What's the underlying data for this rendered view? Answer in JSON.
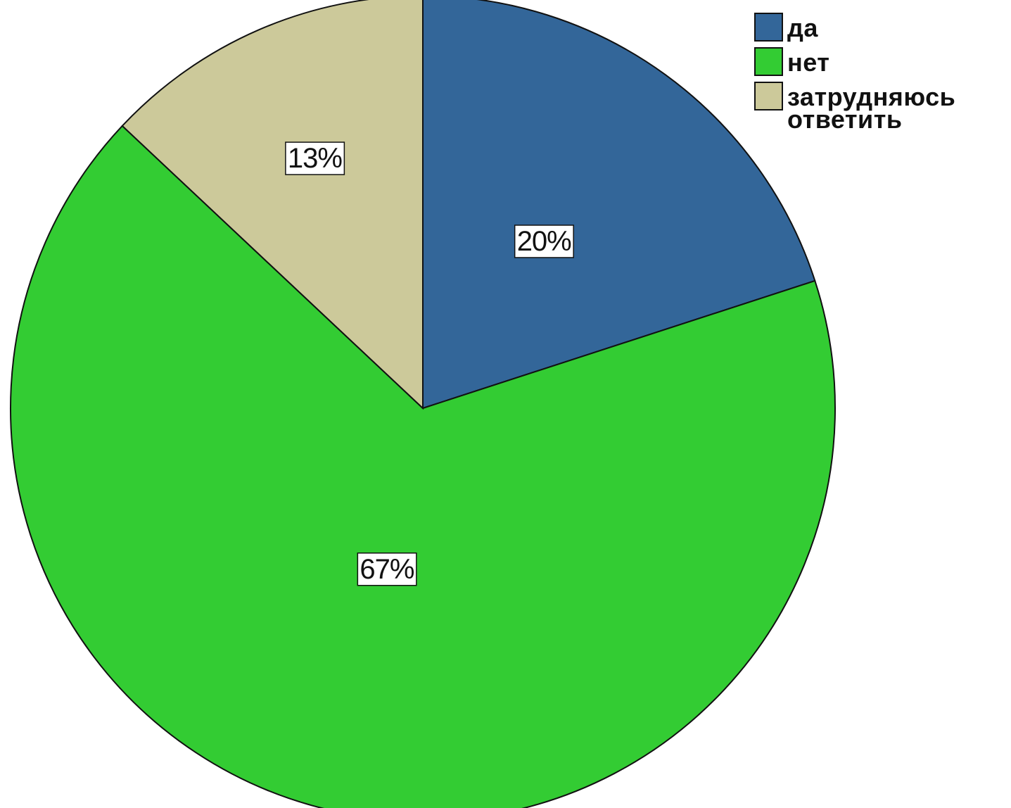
{
  "chart_data": {
    "type": "pie",
    "slices": [
      {
        "label": "да",
        "value": 20,
        "data_label": "20%",
        "color": "#336699"
      },
      {
        "label": "нет",
        "value": 67,
        "data_label": "67%",
        "color": "#33CC33"
      },
      {
        "label": "затрудняюсь ответить",
        "value": 13,
        "data_label": "13%",
        "color": "#CCC99A"
      }
    ],
    "start_angle_deg": 0,
    "direction": "clockwise",
    "legend_position": "top-right"
  },
  "legend": {
    "items": [
      {
        "label_lines": [
          "да"
        ],
        "color": "#336699"
      },
      {
        "label_lines": [
          "нет"
        ],
        "color": "#33CC33"
      },
      {
        "label_lines": [
          "затрудняюсь",
          "ответить"
        ],
        "color": "#CCC99A"
      }
    ]
  }
}
